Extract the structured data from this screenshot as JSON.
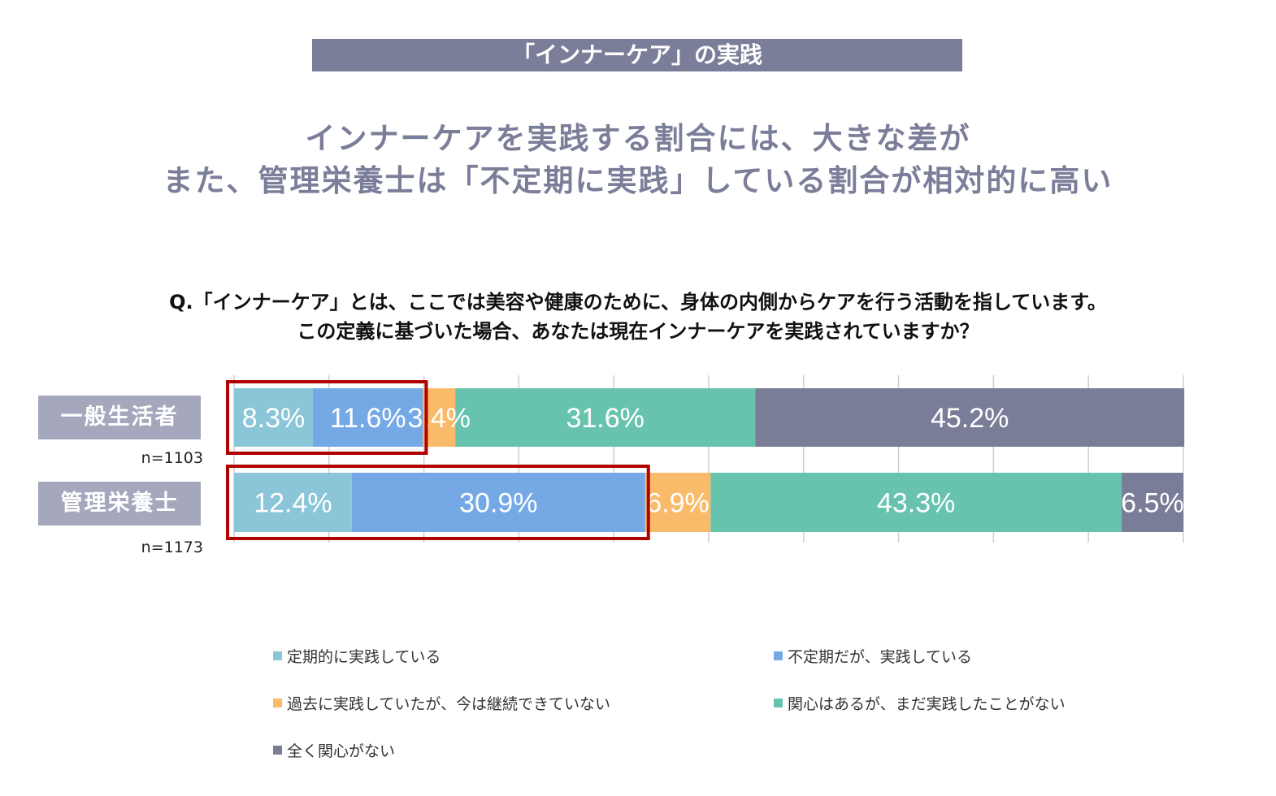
{
  "title_bar": "「インナーケア」の実践",
  "headline": [
    "インナーケアを実践する割合には、大きな差が",
    "また、管理栄養士は「不定期に実践」している割合が相対的に高い"
  ],
  "question": [
    "Q.「インナーケア」とは、ここでは美容や健康のために、身体の内側からケアを行う活動を指しています。",
    "この定義に基づいた場合、あなたは現在インナーケアを実践されていますか？"
  ],
  "chart_data": {
    "type": "bar",
    "orientation": "horizontal-stacked-100",
    "categories": [
      "一般生活者",
      "管理栄養士"
    ],
    "sample_sizes": [
      "n=1103",
      "n=1173"
    ],
    "series": [
      {
        "name": "定期的に実践している",
        "color": "#8ac5d8",
        "values": [
          8.3,
          12.4
        ]
      },
      {
        "name": "不定期だが、実践している",
        "color": "#74a9e6",
        "values": [
          11.6,
          30.9
        ]
      },
      {
        "name": "過去に実践していたが、今は継続できていない",
        "color": "#f9bb6a",
        "values": [
          3.4,
          6.9
        ]
      },
      {
        "name": "関心はあるが、まだ実践したことがない",
        "color": "#68c3ae",
        "values": [
          31.6,
          43.3
        ]
      },
      {
        "name": "全く関心がない",
        "color": "#7a7d98",
        "values": [
          45.2,
          6.5
        ]
      }
    ],
    "xlim": [
      0,
      100
    ],
    "grid": true,
    "highlight": "first two series outlined in red for each category",
    "highlight_color": "#b00000",
    "legend_position": "bottom"
  }
}
